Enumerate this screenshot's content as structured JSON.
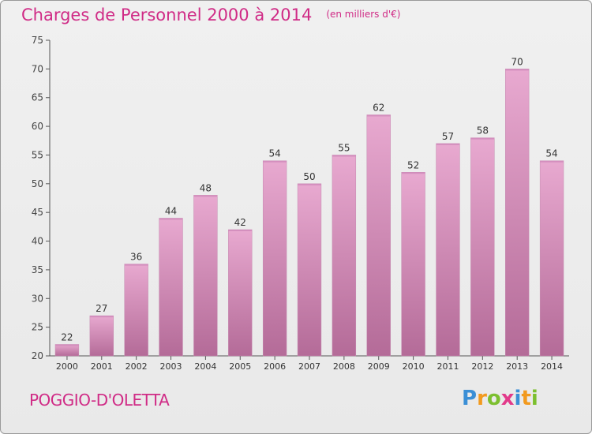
{
  "header": {
    "title": "Charges de Personnel 2000 à 2014",
    "subtitle": "(en milliers d'€)"
  },
  "footer": {
    "commune": "POGGIO-D'OLETTA",
    "logo_letters": [
      {
        "ch": "P",
        "color": "#3b8fd6"
      },
      {
        "ch": "r",
        "color": "#f29a1e"
      },
      {
        "ch": "o",
        "color": "#7cbf2f"
      },
      {
        "ch": "x",
        "color": "#e23a8a"
      },
      {
        "ch": "i",
        "color": "#3b8fd6"
      },
      {
        "ch": "t",
        "color": "#f29a1e"
      },
      {
        "ch": "i",
        "color": "#7cbf2f"
      }
    ]
  },
  "colors": {
    "accent": "#d02b86",
    "bar_top": "#e8a9d0",
    "bar_bottom": "#b46b98"
  },
  "chart_data": {
    "type": "bar",
    "title": "Charges de Personnel 2000 à 2014",
    "xlabel": "",
    "ylabel": "",
    "categories": [
      "2000",
      "2001",
      "2002",
      "2003",
      "2004",
      "2005",
      "2006",
      "2007",
      "2008",
      "2009",
      "2010",
      "2011",
      "2012",
      "2013",
      "2014"
    ],
    "values": [
      22,
      27,
      36,
      44,
      48,
      42,
      54,
      50,
      55,
      62,
      52,
      57,
      58,
      70,
      54
    ],
    "ylim": [
      20,
      75
    ],
    "yticks": [
      20,
      25,
      30,
      35,
      40,
      45,
      50,
      55,
      60,
      65,
      70,
      75
    ],
    "grid": false,
    "data_labels": true
  }
}
